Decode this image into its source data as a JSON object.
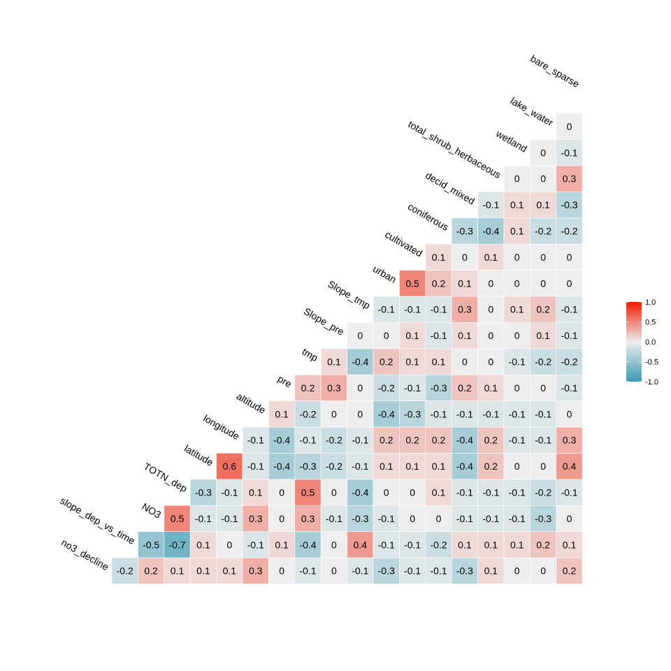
{
  "chart_data": {
    "type": "heatmap",
    "title": "",
    "variables": [
      "no3_decline",
      "slope_dep_vs_time",
      "NO3",
      "TOTN_dep",
      "latitude",
      "longitude",
      "altitude",
      "pre",
      "tmp",
      "Slope_pre",
      "Slope_tmp",
      "urban",
      "cultivated",
      "coniferous",
      "decid_mixed",
      "total_shrub_herbaceous",
      "wetland",
      "lake_water",
      "bare_sparse"
    ],
    "rows": [
      {
        "label": "no3_decline",
        "values": [
          -0.2,
          0.2,
          0.1,
          0.1,
          0.1,
          0.3,
          0,
          -0.1,
          0,
          -0.1,
          -0.3,
          -0.1,
          -0.1,
          -0.3,
          0.1,
          0,
          0,
          0.2
        ]
      },
      {
        "label": "slope_dep_vs_time",
        "values": [
          -0.5,
          -0.7,
          0.1,
          0,
          -0.1,
          0.1,
          -0.4,
          0,
          0.4,
          -0.1,
          -0.1,
          -0.2,
          0.1,
          0.1,
          0.1,
          0.2,
          0.1
        ]
      },
      {
        "label": "NO3",
        "values": [
          0.5,
          -0.1,
          -0.1,
          0.3,
          0,
          0.3,
          -0.1,
          -0.3,
          -0.1,
          0,
          0,
          -0.1,
          -0.1,
          -0.1,
          -0.3,
          0
        ]
      },
      {
        "label": "TOTN_dep",
        "values": [
          -0.3,
          -0.1,
          0.1,
          0,
          0.5,
          0,
          -0.4,
          0,
          0,
          0.1,
          -0.1,
          -0.1,
          -0.1,
          -0.2,
          -0.1
        ]
      },
      {
        "label": "latitude",
        "values": [
          0.6,
          -0.1,
          -0.4,
          -0.3,
          -0.2,
          -0.1,
          0.1,
          0.1,
          0.1,
          -0.4,
          0.2,
          0,
          0,
          0.4
        ]
      },
      {
        "label": "longitude",
        "values": [
          -0.1,
          -0.4,
          -0.1,
          -0.2,
          -0.1,
          0.2,
          0.2,
          0.2,
          -0.4,
          0.2,
          -0.1,
          -0.1,
          0.3
        ]
      },
      {
        "label": "altitude",
        "values": [
          0.1,
          -0.2,
          0,
          0,
          -0.4,
          -0.3,
          -0.1,
          -0.1,
          -0.1,
          -0.1,
          -0.1,
          0
        ]
      },
      {
        "label": "pre",
        "values": [
          0.2,
          0.3,
          0,
          -0.2,
          -0.1,
          -0.3,
          0.2,
          0.1,
          0,
          0,
          -0.1
        ]
      },
      {
        "label": "tmp",
        "values": [
          0.1,
          -0.4,
          0.2,
          0.1,
          0.1,
          0,
          0,
          -0.1,
          -0.2,
          -0.2
        ]
      },
      {
        "label": "Slope_pre",
        "values": [
          0,
          0,
          0.1,
          -0.1,
          0.1,
          0,
          0,
          0.1,
          -0.1
        ]
      },
      {
        "label": "Slope_tmp",
        "values": [
          -0.1,
          -0.1,
          -0.1,
          0.3,
          0,
          0.1,
          0.2,
          -0.1
        ]
      },
      {
        "label": "urban",
        "values": [
          0.5,
          0.2,
          0.1,
          0,
          0,
          0,
          0
        ]
      },
      {
        "label": "cultivated",
        "values": [
          0.1,
          0,
          0.1,
          0,
          0,
          0
        ]
      },
      {
        "label": "coniferous",
        "values": [
          -0.3,
          -0.4,
          0.1,
          -0.2,
          -0.2
        ]
      },
      {
        "label": "decid_mixed",
        "values": [
          -0.1,
          0.1,
          0.1,
          -0.3
        ]
      },
      {
        "label": "total_shrub_herbaceous",
        "values": [
          0,
          0,
          0.3
        ]
      },
      {
        "label": "wetland",
        "values": [
          0,
          -0.1
        ]
      },
      {
        "label": "lake_water",
        "values": [
          0
        ]
      }
    ],
    "color_scale": {
      "low": "#3A9AB2",
      "mid": "#EEEEEE",
      "high": "#F11B00",
      "range": [
        -1,
        1
      ]
    },
    "legend": {
      "position": "right",
      "ticks": [
        "1.0",
        "0.5",
        "0.0",
        "-0.5",
        "-1.0"
      ]
    },
    "grid": false
  }
}
